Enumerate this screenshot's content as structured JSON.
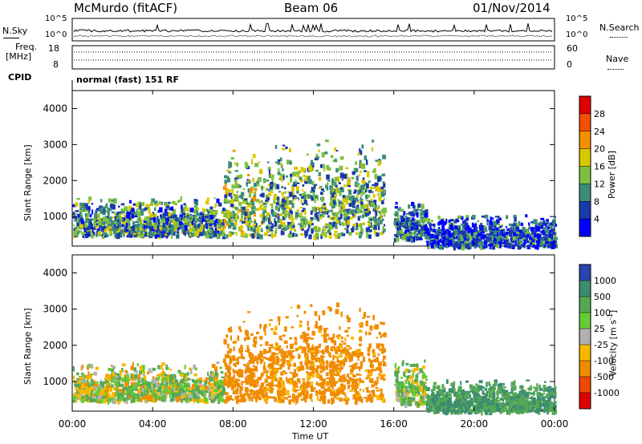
{
  "header": {
    "station": "McMurdo (fitACF)",
    "beam": "Beam 06",
    "date": "01/Nov/2014"
  },
  "top_panel": {
    "nsky_label": "N.Sky",
    "nsearch_label": "N.Search",
    "exp_hi_left": "10^5",
    "exp_lo_left": "10^0",
    "exp_hi_right": "10^5",
    "exp_lo_right": "10^0",
    "freq_label_1": "Freq.",
    "freq_label_2": "[MHz]",
    "freq_hi": "18",
    "freq_lo": "8",
    "nave_label": "Nave",
    "nave_hi": "60",
    "nave_lo": "0",
    "cpid_label": "CPID",
    "cpid_text": "normal (fast) 151 RF"
  },
  "axes": {
    "ylabel": "Slant Range [km]",
    "xlabel": "Time UT",
    "x_ticks": [
      "00:00",
      "04:00",
      "08:00",
      "12:00",
      "16:00",
      "20:00",
      "00:00"
    ],
    "y_ticks": [
      "1000",
      "2000",
      "3000",
      "4000"
    ]
  },
  "power_colorbar": {
    "label": "Power [dB]",
    "ticks": [
      "28",
      "24",
      "20",
      "16",
      "12",
      "8",
      "4"
    ],
    "colors": [
      "#e00000",
      "#f05000",
      "#f39000",
      "#d8c800",
      "#7cc040",
      "#3c8c78",
      "#1a3aa8",
      "#0000ff"
    ]
  },
  "velocity_colorbar": {
    "label": "Velocity [m s",
    "label_sup": "-1",
    "label_end": "]",
    "ticks": [
      "1000",
      "500",
      "100",
      "25",
      "-25",
      "-100",
      "-500",
      "-1000"
    ],
    "colors": [
      "#2a44b0",
      "#3c8c70",
      "#55a955",
      "#66cc33",
      "#b0b0b0",
      "#f7b800",
      "#f08c00",
      "#f04800",
      "#e00000"
    ]
  },
  "chart_data": [
    {
      "type": "heatmap",
      "title": "Power",
      "xlabel": "Time UT",
      "ylabel": "Slant Range [km]",
      "x_range_hours": [
        0,
        24
      ],
      "y_range_km": [
        180,
        4500
      ],
      "colorbar": {
        "label": "Power [dB]",
        "range": [
          0,
          32
        ],
        "ticks": [
          4,
          8,
          12,
          16,
          20,
          24,
          28
        ]
      },
      "echo_regions": [
        {
          "t_start_h": 0.0,
          "t_end_h": 7.5,
          "range_km": [
            500,
            1600
          ],
          "power_db": 10
        },
        {
          "t_start_h": 7.5,
          "t_end_h": 9.5,
          "range_km": [
            500,
            3000
          ],
          "power_db": 14
        },
        {
          "t_start_h": 9.5,
          "t_end_h": 15.5,
          "range_km": [
            500,
            3300
          ],
          "power_db": 12
        },
        {
          "t_start_h": 16.0,
          "t_end_h": 17.6,
          "range_km": [
            400,
            1700
          ],
          "power_db": 8
        },
        {
          "t_start_h": 17.6,
          "t_end_h": 24.0,
          "range_km": [
            200,
            1100
          ],
          "power_db": 6
        }
      ]
    },
    {
      "type": "heatmap",
      "title": "Velocity",
      "xlabel": "Time UT",
      "ylabel": "Slant Range [km]",
      "x_range_hours": [
        0,
        24
      ],
      "y_range_km": [
        180,
        4500
      ],
      "colorbar": {
        "label": "Velocity [m s-1]",
        "ticks": [
          1000,
          500,
          100,
          25,
          -25,
          -100,
          -500,
          -1000
        ]
      },
      "echo_regions": [
        {
          "t_start_h": 0.0,
          "t_end_h": 7.5,
          "range_km": [
            500,
            1600
          ],
          "velocity_ms": 50
        },
        {
          "t_start_h": 7.5,
          "t_end_h": 9.5,
          "range_km": [
            500,
            3000
          ],
          "velocity_ms": -300
        },
        {
          "t_start_h": 9.5,
          "t_end_h": 15.5,
          "range_km": [
            500,
            3300
          ],
          "velocity_ms": -250
        },
        {
          "t_start_h": 16.0,
          "t_end_h": 17.6,
          "range_km": [
            400,
            1700
          ],
          "velocity_ms": 100
        },
        {
          "t_start_h": 17.6,
          "t_end_h": 24.0,
          "range_km": [
            200,
            1100
          ],
          "velocity_ms": 500
        }
      ]
    }
  ]
}
